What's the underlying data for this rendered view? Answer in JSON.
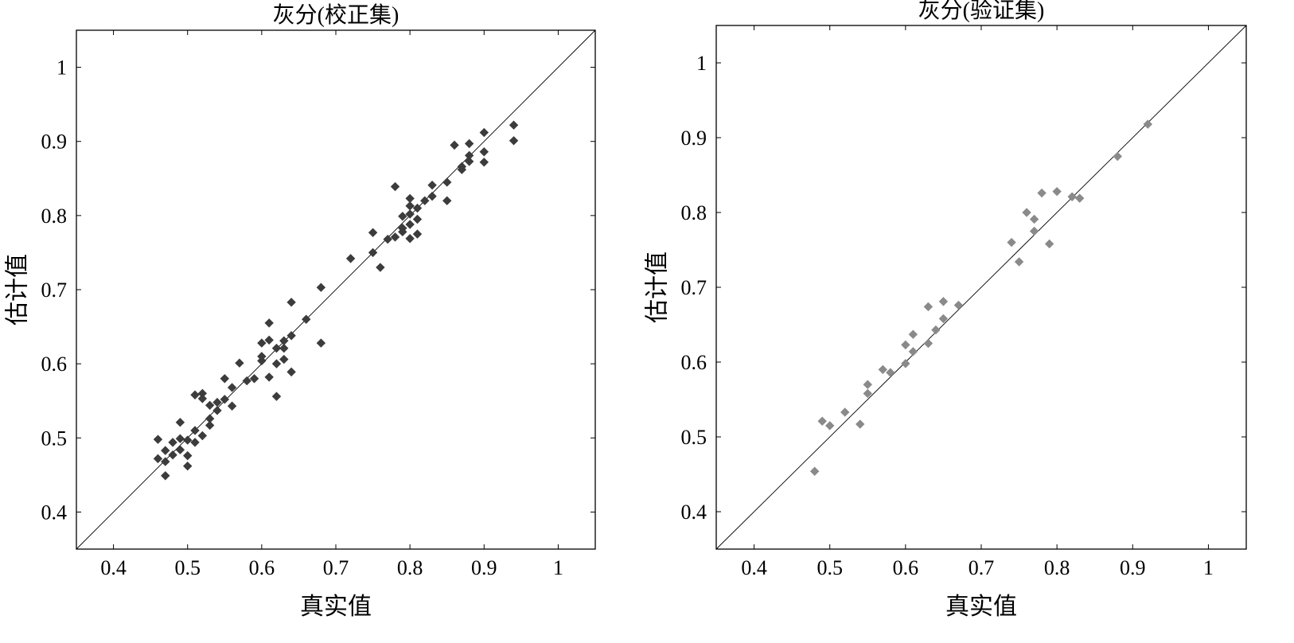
{
  "chart_data": [
    {
      "type": "scatter",
      "title": "灰分(校正集)",
      "xlabel": "真实值",
      "ylabel": "估计值",
      "xlim": [
        0.35,
        1.05
      ],
      "ylim": [
        0.35,
        1.05
      ],
      "xticks": [
        0.4,
        0.5,
        0.6,
        0.7,
        0.8,
        0.9,
        1
      ],
      "yticks": [
        0.4,
        0.5,
        0.6,
        0.7,
        0.8,
        0.9,
        1
      ],
      "xtick_labels": [
        "0.4",
        "0.5",
        "0.6",
        "0.7",
        "0.8",
        "0.9",
        "1"
      ],
      "ytick_labels": [
        "0.4",
        "0.5",
        "0.6",
        "0.7",
        "0.8",
        "0.9",
        "1"
      ],
      "grid": false,
      "reference_line": "y = x",
      "marker_color": "#3c3c3c",
      "points": [
        [
          0.46,
          0.498
        ],
        [
          0.46,
          0.472
        ],
        [
          0.47,
          0.483
        ],
        [
          0.47,
          0.468
        ],
        [
          0.47,
          0.449
        ],
        [
          0.48,
          0.494
        ],
        [
          0.48,
          0.477
        ],
        [
          0.49,
          0.521
        ],
        [
          0.49,
          0.499
        ],
        [
          0.49,
          0.484
        ],
        [
          0.5,
          0.497
        ],
        [
          0.5,
          0.476
        ],
        [
          0.5,
          0.462
        ],
        [
          0.51,
          0.51
        ],
        [
          0.51,
          0.494
        ],
        [
          0.51,
          0.558
        ],
        [
          0.52,
          0.56
        ],
        [
          0.52,
          0.553
        ],
        [
          0.52,
          0.503
        ],
        [
          0.53,
          0.544
        ],
        [
          0.53,
          0.526
        ],
        [
          0.53,
          0.517
        ],
        [
          0.54,
          0.537
        ],
        [
          0.54,
          0.548
        ],
        [
          0.55,
          0.552
        ],
        [
          0.55,
          0.58
        ],
        [
          0.56,
          0.568
        ],
        [
          0.56,
          0.543
        ],
        [
          0.57,
          0.601
        ],
        [
          0.58,
          0.577
        ],
        [
          0.59,
          0.58
        ],
        [
          0.6,
          0.628
        ],
        [
          0.6,
          0.61
        ],
        [
          0.6,
          0.604
        ],
        [
          0.61,
          0.655
        ],
        [
          0.61,
          0.632
        ],
        [
          0.61,
          0.582
        ],
        [
          0.62,
          0.621
        ],
        [
          0.62,
          0.6
        ],
        [
          0.62,
          0.556
        ],
        [
          0.63,
          0.631
        ],
        [
          0.63,
          0.621
        ],
        [
          0.63,
          0.606
        ],
        [
          0.64,
          0.589
        ],
        [
          0.64,
          0.638
        ],
        [
          0.64,
          0.683
        ],
        [
          0.66,
          0.66
        ],
        [
          0.68,
          0.703
        ],
        [
          0.68,
          0.628
        ],
        [
          0.72,
          0.742
        ],
        [
          0.75,
          0.777
        ],
        [
          0.75,
          0.75
        ],
        [
          0.76,
          0.73
        ],
        [
          0.77,
          0.768
        ],
        [
          0.78,
          0.839
        ],
        [
          0.78,
          0.771
        ],
        [
          0.79,
          0.799
        ],
        [
          0.79,
          0.783
        ],
        [
          0.79,
          0.778
        ],
        [
          0.8,
          0.823
        ],
        [
          0.8,
          0.813
        ],
        [
          0.8,
          0.802
        ],
        [
          0.8,
          0.788
        ],
        [
          0.8,
          0.769
        ],
        [
          0.81,
          0.81
        ],
        [
          0.81,
          0.795
        ],
        [
          0.81,
          0.775
        ],
        [
          0.82,
          0.82
        ],
        [
          0.83,
          0.826
        ],
        [
          0.83,
          0.841
        ],
        [
          0.85,
          0.845
        ],
        [
          0.85,
          0.82
        ],
        [
          0.86,
          0.895
        ],
        [
          0.87,
          0.866
        ],
        [
          0.87,
          0.862
        ],
        [
          0.88,
          0.897
        ],
        [
          0.88,
          0.881
        ],
        [
          0.88,
          0.873
        ],
        [
          0.9,
          0.912
        ],
        [
          0.9,
          0.886
        ],
        [
          0.9,
          0.872
        ],
        [
          0.94,
          0.922
        ],
        [
          0.94,
          0.901
        ]
      ]
    },
    {
      "type": "scatter",
      "title": "灰分(验证集)",
      "xlabel": "真实值",
      "ylabel": "估计值",
      "xlim": [
        0.35,
        1.05
      ],
      "ylim": [
        0.35,
        1.05
      ],
      "xticks": [
        0.4,
        0.5,
        0.6,
        0.7,
        0.8,
        0.9,
        1
      ],
      "yticks": [
        0.4,
        0.5,
        0.6,
        0.7,
        0.8,
        0.9,
        1
      ],
      "xtick_labels": [
        "0.4",
        "0.5",
        "0.6",
        "0.7",
        "0.8",
        "0.9",
        "1"
      ],
      "ytick_labels": [
        "0.4",
        "0.5",
        "0.6",
        "0.7",
        "0.8",
        "0.9",
        "1"
      ],
      "grid": false,
      "reference_line": "y = x",
      "marker_color": "#8a8a8a",
      "points": [
        [
          0.48,
          0.454
        ],
        [
          0.49,
          0.521
        ],
        [
          0.5,
          0.515
        ],
        [
          0.52,
          0.533
        ],
        [
          0.54,
          0.517
        ],
        [
          0.55,
          0.57
        ],
        [
          0.55,
          0.558
        ],
        [
          0.57,
          0.59
        ],
        [
          0.58,
          0.586
        ],
        [
          0.6,
          0.623
        ],
        [
          0.6,
          0.598
        ],
        [
          0.61,
          0.637
        ],
        [
          0.61,
          0.614
        ],
        [
          0.63,
          0.674
        ],
        [
          0.63,
          0.625
        ],
        [
          0.64,
          0.643
        ],
        [
          0.65,
          0.681
        ],
        [
          0.65,
          0.658
        ],
        [
          0.67,
          0.676
        ],
        [
          0.74,
          0.76
        ],
        [
          0.75,
          0.734
        ],
        [
          0.76,
          0.8
        ],
        [
          0.77,
          0.791
        ],
        [
          0.77,
          0.775
        ],
        [
          0.78,
          0.826
        ],
        [
          0.79,
          0.758
        ],
        [
          0.8,
          0.828
        ],
        [
          0.82,
          0.821
        ],
        [
          0.83,
          0.819
        ],
        [
          0.88,
          0.875
        ],
        [
          0.92,
          0.918
        ]
      ]
    }
  ]
}
